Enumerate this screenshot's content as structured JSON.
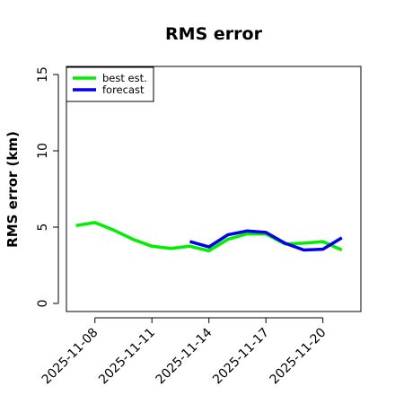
{
  "chart_data": {
    "type": "line",
    "title": "RMS error",
    "xlabel": "",
    "ylabel": "RMS error (km)",
    "ylim": [
      0,
      15
    ],
    "yticks": [
      "0",
      "5",
      "10",
      "15"
    ],
    "xlim": [
      "2025-11-06T12:00",
      "2025-11-22T00:00"
    ],
    "xticks": [
      {
        "date": "2025-11-08",
        "label": "2025-11-08"
      },
      {
        "date": "2025-11-11",
        "label": "2025-11-11"
      },
      {
        "date": "2025-11-14",
        "label": "2025-11-14"
      },
      {
        "date": "2025-11-17",
        "label": "2025-11-17"
      },
      {
        "date": "2025-11-20",
        "label": "2025-11-20"
      }
    ],
    "grid": false,
    "legend_position": "top-left",
    "series": [
      {
        "name": "best est.",
        "color": "#00ee00",
        "points": [
          {
            "x": "2025-11-07",
            "y": 5.1
          },
          {
            "x": "2025-11-08",
            "y": 5.3
          },
          {
            "x": "2025-11-09",
            "y": 4.8
          },
          {
            "x": "2025-11-10",
            "y": 4.2
          },
          {
            "x": "2025-11-11",
            "y": 3.75
          },
          {
            "x": "2025-11-12",
            "y": 3.6
          },
          {
            "x": "2025-11-13",
            "y": 3.75
          },
          {
            "x": "2025-11-14",
            "y": 3.45
          },
          {
            "x": "2025-11-15",
            "y": 4.2
          },
          {
            "x": "2025-11-16",
            "y": 4.55
          },
          {
            "x": "2025-11-17",
            "y": 4.55
          },
          {
            "x": "2025-11-18",
            "y": 3.9
          },
          {
            "x": "2025-11-19",
            "y": 3.95
          },
          {
            "x": "2025-11-20",
            "y": 4.05
          },
          {
            "x": "2025-11-21",
            "y": 3.5
          }
        ]
      },
      {
        "name": "forecast",
        "color": "#0000ee",
        "points": [
          {
            "x": "2025-11-13",
            "y": 4.05
          },
          {
            "x": "2025-11-14",
            "y": 3.7
          },
          {
            "x": "2025-11-15",
            "y": 4.5
          },
          {
            "x": "2025-11-16",
            "y": 4.75
          },
          {
            "x": "2025-11-17",
            "y": 4.65
          },
          {
            "x": "2025-11-18",
            "y": 3.95
          },
          {
            "x": "2025-11-19",
            "y": 3.5
          },
          {
            "x": "2025-11-20",
            "y": 3.55
          },
          {
            "x": "2025-11-21",
            "y": 4.3
          }
        ]
      }
    ]
  }
}
